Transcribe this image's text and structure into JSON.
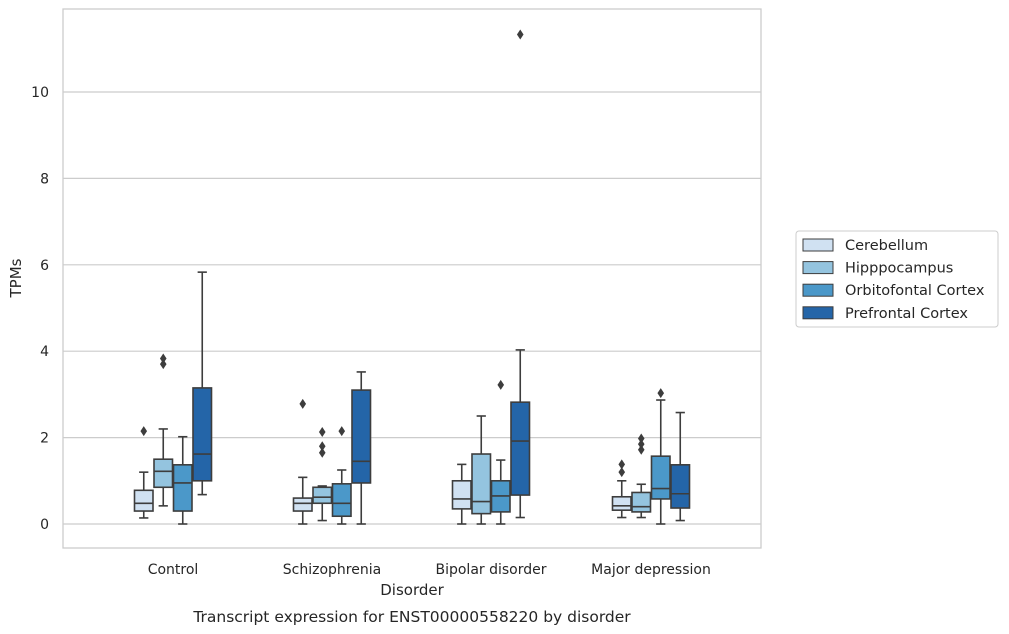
{
  "chart_data": {
    "type": "boxplot",
    "title": "",
    "caption": "Transcript expression for ENST00000558220 by disorder",
    "xlabel": "Disorder",
    "ylabel": "TPMs",
    "ylim": [
      -0.55,
      11.95
    ],
    "yticks": [
      0,
      2,
      4,
      6,
      8,
      10
    ],
    "grid": "horizontal",
    "legend_position": "right",
    "categories": [
      "Control",
      "Schizophrenia",
      "Bipolar disorder",
      "Major depression"
    ],
    "series": [
      {
        "name": "Cerebellum",
        "color": "#d0e1f2",
        "boxes": [
          {
            "whisker_low": 0.14,
            "q1": 0.3,
            "median": 0.48,
            "q3": 0.78,
            "whisker_high": 1.2,
            "outliers": [
              2.15
            ]
          },
          {
            "whisker_low": 0.0,
            "q1": 0.3,
            "median": 0.48,
            "q3": 0.6,
            "whisker_high": 1.08,
            "outliers": [
              2.78
            ]
          },
          {
            "whisker_low": 0.0,
            "q1": 0.35,
            "median": 0.58,
            "q3": 1.0,
            "whisker_high": 1.38,
            "outliers": []
          },
          {
            "whisker_low": 0.15,
            "q1": 0.32,
            "median": 0.42,
            "q3": 0.63,
            "whisker_high": 1.0,
            "outliers": [
              1.2,
              1.38
            ]
          }
        ]
      },
      {
        "name": "Hipppocampus",
        "color": "#94c4df",
        "boxes": [
          {
            "whisker_low": 0.42,
            "q1": 0.85,
            "median": 1.22,
            "q3": 1.5,
            "whisker_high": 2.2,
            "outliers": [
              3.7,
              3.83
            ]
          },
          {
            "whisker_low": 0.08,
            "q1": 0.48,
            "median": 0.62,
            "q3": 0.85,
            "whisker_high": 0.88,
            "outliers": [
              1.65,
              1.8,
              2.13
            ]
          },
          {
            "whisker_low": 0.0,
            "q1": 0.24,
            "median": 0.52,
            "q3": 1.62,
            "whisker_high": 2.5,
            "outliers": []
          },
          {
            "whisker_low": 0.15,
            "q1": 0.28,
            "median": 0.4,
            "q3": 0.73,
            "whisker_high": 0.92,
            "outliers": [
              1.72,
              1.85,
              1.98
            ]
          }
        ]
      },
      {
        "name": "Orbitofontal Cortex",
        "color": "#4b98c9",
        "boxes": [
          {
            "whisker_low": 0.0,
            "q1": 0.3,
            "median": 0.95,
            "q3": 1.37,
            "whisker_high": 2.02,
            "outliers": []
          },
          {
            "whisker_low": 0.0,
            "q1": 0.18,
            "median": 0.48,
            "q3": 0.93,
            "whisker_high": 1.25,
            "outliers": [
              2.15
            ]
          },
          {
            "whisker_low": 0.0,
            "q1": 0.28,
            "median": 0.65,
            "q3": 1.0,
            "whisker_high": 1.48,
            "outliers": [
              3.22
            ]
          },
          {
            "whisker_low": 0.0,
            "q1": 0.58,
            "median": 0.82,
            "q3": 1.57,
            "whisker_high": 2.87,
            "outliers": [
              3.03
            ]
          }
        ]
      },
      {
        "name": "Prefrontal Cortex",
        "color": "#2465a8",
        "boxes": [
          {
            "whisker_low": 0.68,
            "q1": 1.0,
            "median": 1.62,
            "q3": 3.15,
            "whisker_high": 5.83,
            "outliers": []
          },
          {
            "whisker_low": 0.0,
            "q1": 0.95,
            "median": 1.45,
            "q3": 3.1,
            "whisker_high": 3.52,
            "outliers": []
          },
          {
            "whisker_low": 0.15,
            "q1": 0.67,
            "median": 1.92,
            "q3": 2.82,
            "whisker_high": 4.03,
            "outliers": [
              11.33
            ]
          },
          {
            "whisker_low": 0.08,
            "q1": 0.37,
            "median": 0.7,
            "q3": 1.37,
            "whisker_high": 2.58,
            "outliers": []
          }
        ]
      }
    ]
  }
}
